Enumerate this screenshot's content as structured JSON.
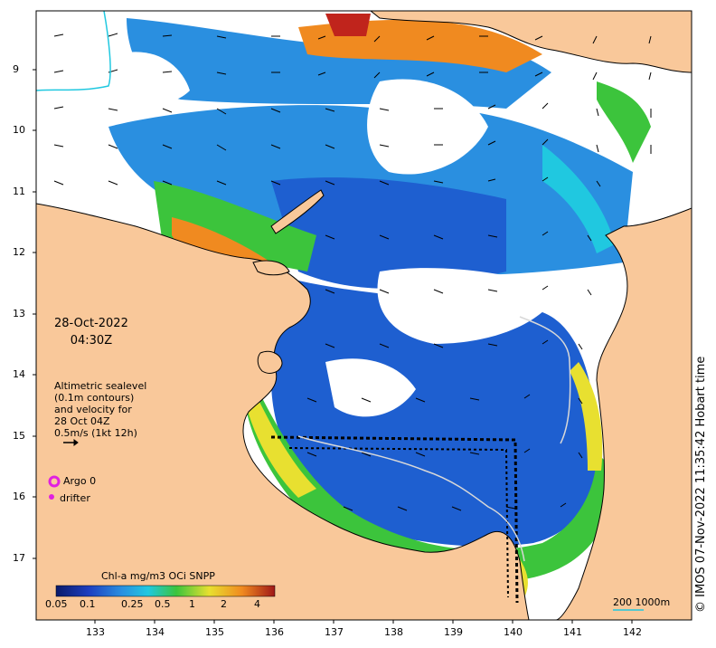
{
  "map": {
    "date": "28-Oct-2022",
    "time": "04:30Z",
    "legend_lines": [
      "Altimetric sealevel",
      "(0.1m contours)",
      "and velocity for",
      "28 Oct 04Z",
      "0.5m/s (1kt 12h)"
    ],
    "colorbar": {
      "title": "Chl-a mg/m3 OCi SNPP",
      "ticks": [
        "0.05",
        "0.1",
        "0.25",
        "0.5",
        "1",
        "2",
        "4"
      ]
    },
    "argo_label": "Argo 0",
    "drifter_label": "drifter",
    "scale_label": "200  1000m",
    "credit": "© IMOS 07-Nov-2022 11:35:42 Hobart time",
    "lat_ticks": [
      "9",
      "10",
      "11",
      "12",
      "13",
      "14",
      "15",
      "16",
      "17"
    ],
    "lon_ticks": [
      "133",
      "134",
      "135",
      "136",
      "137",
      "138",
      "139",
      "140",
      "141",
      "142"
    ]
  },
  "colors": {
    "land": "#f9c89a",
    "cloud": "#ffffff",
    "deep": "#1e5fd0",
    "mid": "#2a8fe0",
    "cyan": "#20c8e0",
    "green": "#3cc43c",
    "yellow": "#e8e030",
    "orange": "#f08a20",
    "red": "#c0241c",
    "marker": "#e020e0"
  }
}
